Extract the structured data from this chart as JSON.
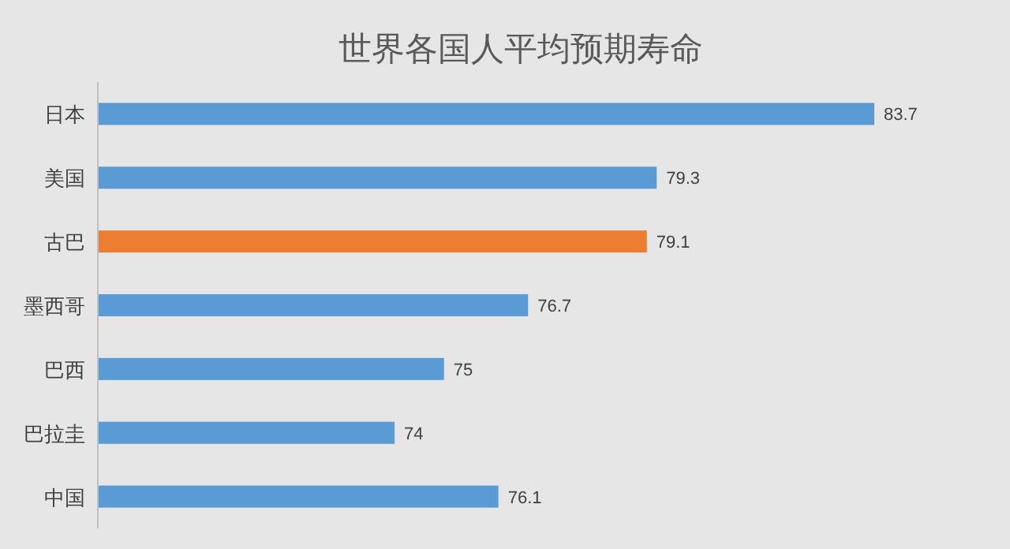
{
  "chart_data": {
    "type": "bar",
    "orientation": "horizontal",
    "title": "世界各国人平均预期寿命",
    "categories": [
      "日本",
      "美国",
      "古巴",
      "墨西哥",
      "巴西",
      "巴拉圭",
      "中国"
    ],
    "values": [
      83.7,
      79.3,
      79.1,
      76.7,
      75,
      74,
      76.1
    ],
    "colors": [
      "#5b9bd5",
      "#5b9bd5",
      "#ed7d31",
      "#5b9bd5",
      "#5b9bd5",
      "#5b9bd5",
      "#5b9bd5"
    ],
    "xlim": [
      68,
      83.7
    ],
    "data_labels": true
  }
}
